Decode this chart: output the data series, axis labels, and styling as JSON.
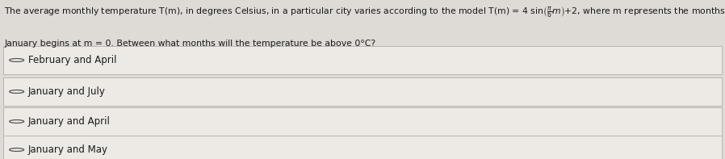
{
  "question_line1_pre": "The average monthly temperature T(m), in degrees Celsius, in a particular city varies according to the model T(m) = 4 sin",
  "question_line1_formula": "\\left(\\frac{\\pi}{6}m\\right)+2",
  "question_line1_post": ", where m represents the months of the year and",
  "question_line2": "January begins at m = 0. Between what months will the temperature be above 0°C?",
  "options": [
    "February and April",
    "January and July",
    "January and April",
    "January and May"
  ],
  "bg_color": "#dedad5",
  "option_bg_color": "#edeae6",
  "option_border_color": "#b8b4ae",
  "text_color": "#1a1a1a",
  "radio_color": "#555555",
  "question_fontsize": 7.8,
  "option_fontsize": 8.5,
  "fig_width": 8.98,
  "fig_height": 1.97,
  "dpi": 100
}
